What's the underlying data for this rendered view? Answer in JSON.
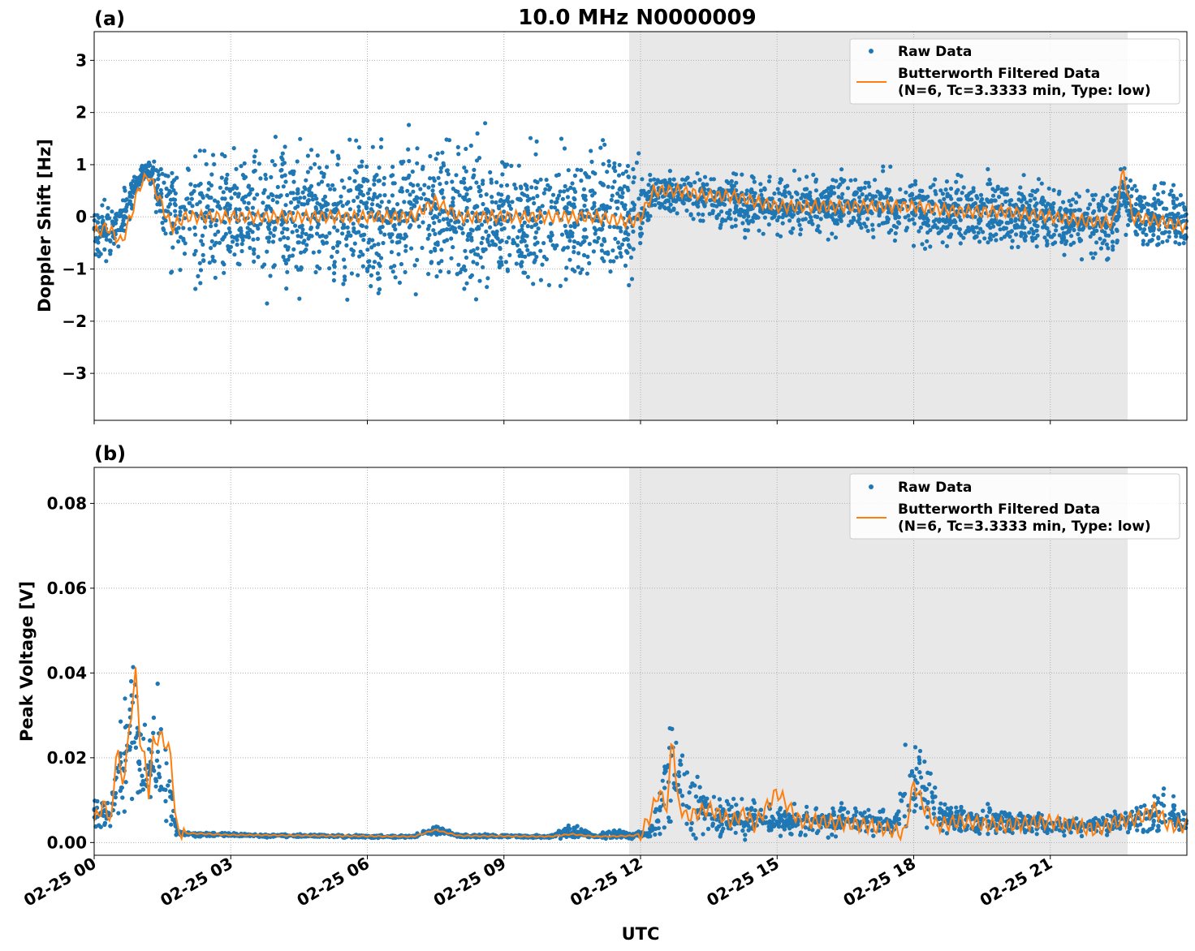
{
  "figure": {
    "title": "10.0 MHz N0000009",
    "xlabel": "UTC",
    "x_tick_labels": [
      "02-25 00",
      "02-25 03",
      "02-25 06",
      "02-25 09",
      "02-25 12",
      "02-25 15",
      "02-25 18",
      "02-25 21"
    ],
    "colors": {
      "raw": "#1f77b4",
      "filtered": "#ff7f0e",
      "night_shade": "#e8e8e8",
      "grid": "#b0b0b0"
    }
  },
  "chart_data": [
    {
      "type": "scatter",
      "panel_label": "(a)",
      "ylabel": "Doppler Shift [Hz]",
      "xlim_hours": [
        0,
        24
      ],
      "ylim": [
        -3.9,
        3.55
      ],
      "y_ticks": [
        -3,
        -2,
        -1,
        0,
        1,
        2,
        3
      ],
      "y_tick_labels": [
        "−3",
        "−2",
        "−1",
        "0",
        "1",
        "2",
        "3"
      ],
      "shaded_span_hours": [
        11.75,
        22.7
      ],
      "grid": true,
      "legend_position": "top-right",
      "series": [
        {
          "name": "Raw Data",
          "type": "scatter",
          "x": [
            0,
            0.5,
            1,
            1.2,
            1.7,
            2,
            3,
            4,
            5,
            6,
            7,
            7.5,
            8,
            9,
            10,
            11,
            11.8,
            12,
            12.3,
            13,
            14,
            15,
            16,
            17,
            18,
            18.2,
            19,
            20,
            21,
            22,
            22.4,
            22.6,
            23,
            24
          ],
          "center": [
            -0.2,
            -0.3,
            0.8,
            0.9,
            0.0,
            0.0,
            0.0,
            0.0,
            0.0,
            0.0,
            0.0,
            0.2,
            0.0,
            0.0,
            0.0,
            0.0,
            0.0,
            0.0,
            0.5,
            0.4,
            0.3,
            0.2,
            0.2,
            0.2,
            0.2,
            0.1,
            0.1,
            0.1,
            0.0,
            -0.1,
            -0.1,
            0.5,
            0.0,
            -0.1
          ],
          "spread": [
            0.5,
            0.5,
            0.2,
            0.2,
            1.0,
            1.2,
            1.2,
            1.2,
            1.2,
            1.2,
            1.2,
            1.2,
            1.2,
            1.2,
            1.2,
            1.2,
            1.1,
            0.8,
            0.3,
            0.4,
            0.5,
            0.5,
            0.5,
            0.5,
            0.6,
            0.6,
            0.6,
            0.6,
            0.6,
            0.6,
            0.7,
            0.6,
            0.6,
            0.6
          ]
        },
        {
          "name": "Butterworth Filtered Data\n(N=6, Tc=3.3333 min, Type: low)",
          "legend_lines": [
            "Butterworth Filtered Data",
            "(N=6, Tc=3.3333 min, Type: low)"
          ],
          "type": "line",
          "x": [
            0,
            0.3,
            0.6,
            0.8,
            1.0,
            1.2,
            1.4,
            1.7,
            2.0,
            3,
            4,
            5,
            6,
            7,
            7.5,
            8,
            9,
            10,
            11,
            11.8,
            12.0,
            12.3,
            12.8,
            13.5,
            14,
            15,
            16,
            17,
            18,
            19,
            20,
            21,
            22,
            22.4,
            22.6,
            22.8,
            23.5,
            24
          ],
          "y": [
            -0.3,
            -0.2,
            -0.5,
            0.0,
            0.6,
            0.8,
            0.4,
            -0.2,
            0.0,
            0.0,
            0.0,
            0.0,
            0.0,
            0.0,
            0.3,
            0.0,
            0.0,
            0.0,
            0.0,
            -0.1,
            0.0,
            0.5,
            0.5,
            0.4,
            0.4,
            0.2,
            0.2,
            0.2,
            0.2,
            0.1,
            0.1,
            0.0,
            -0.1,
            -0.1,
            0.9,
            0.0,
            -0.1,
            -0.2
          ]
        }
      ]
    },
    {
      "type": "scatter",
      "panel_label": "(b)",
      "ylabel": "Peak Voltage [V]",
      "xlim_hours": [
        0,
        24
      ],
      "ylim": [
        -0.003,
        0.0885
      ],
      "y_ticks": [
        0,
        0.02,
        0.04,
        0.06,
        0.08
      ],
      "y_tick_labels": [
        "0.00",
        "0.02",
        "0.04",
        "0.06",
        "0.08"
      ],
      "shaded_span_hours": [
        11.75,
        22.7
      ],
      "grid": true,
      "legend_position": "top-right",
      "series": [
        {
          "name": "Raw Data",
          "type": "scatter",
          "x": [
            0,
            0.3,
            0.5,
            0.7,
            0.9,
            1.0,
            1.2,
            1.4,
            1.6,
            1.8,
            2,
            3,
            4,
            5,
            6,
            7,
            7.5,
            8,
            9,
            10,
            10.5,
            11,
            11.5,
            11.8,
            12.2,
            12.5,
            12.7,
            13,
            13.5,
            14,
            14.5,
            15,
            16,
            17,
            17.5,
            17.9,
            18.2,
            18.5,
            19,
            20,
            21,
            22,
            22.5,
            23,
            23.5,
            24
          ],
          "center": [
            0.008,
            0.007,
            0.012,
            0.02,
            0.03,
            0.02,
            0.018,
            0.02,
            0.015,
            0.003,
            0.002,
            0.0018,
            0.0016,
            0.0016,
            0.0014,
            0.0014,
            0.003,
            0.0016,
            0.0015,
            0.0014,
            0.003,
            0.0014,
            0.002,
            0.0015,
            0.002,
            0.01,
            0.02,
            0.01,
            0.007,
            0.006,
            0.006,
            0.005,
            0.005,
            0.005,
            0.004,
            0.012,
            0.015,
            0.007,
            0.005,
            0.005,
            0.004,
            0.004,
            0.005,
            0.006,
            0.007,
            0.005
          ],
          "spread": [
            0.004,
            0.004,
            0.008,
            0.015,
            0.02,
            0.012,
            0.01,
            0.012,
            0.008,
            0.001,
            0.0005,
            0.0004,
            0.0003,
            0.0003,
            0.0003,
            0.0003,
            0.001,
            0.0003,
            0.0003,
            0.0003,
            0.002,
            0.0003,
            0.0012,
            0.0005,
            0.0008,
            0.008,
            0.015,
            0.008,
            0.005,
            0.004,
            0.004,
            0.003,
            0.003,
            0.003,
            0.002,
            0.01,
            0.012,
            0.004,
            0.003,
            0.003,
            0.002,
            0.002,
            0.003,
            0.004,
            0.005,
            0.003
          ]
        },
        {
          "name": "Butterworth Filtered Data\n(N=6, Tc=3.3333 min, Type: low)",
          "legend_lines": [
            "Butterworth Filtered Data",
            "(N=6, Tc=3.3333 min, Type: low)"
          ],
          "type": "line",
          "x": [
            0,
            0.2,
            0.4,
            0.5,
            0.6,
            0.8,
            0.9,
            1.0,
            1.1,
            1.2,
            1.3,
            1.5,
            1.7,
            1.8,
            2,
            3,
            4,
            5,
            6,
            7,
            7.5,
            8,
            9,
            10,
            10.5,
            11,
            11.5,
            11.8,
            12,
            12.2,
            12.4,
            12.6,
            12.7,
            12.8,
            13,
            13.5,
            14,
            14.3,
            14.5,
            15,
            15.5,
            16,
            17,
            17.5,
            17.8,
            18,
            18.2,
            18.5,
            19,
            20,
            21,
            21.5,
            22,
            22.5,
            23,
            23.3,
            23.6,
            24
          ],
          "y": [
            0.005,
            0.009,
            0.005,
            0.026,
            0.012,
            0.028,
            0.042,
            0.025,
            0.02,
            0.012,
            0.024,
            0.025,
            0.02,
            0.003,
            0.0022,
            0.0018,
            0.0017,
            0.0016,
            0.0015,
            0.0014,
            0.003,
            0.0016,
            0.0015,
            0.0014,
            0.002,
            0.0014,
            0.0015,
            0.0016,
            0.002,
            0.006,
            0.012,
            0.008,
            0.028,
            0.01,
            0.006,
            0.008,
            0.005,
            0.007,
            0.004,
            0.012,
            0.005,
            0.005,
            0.004,
            0.003,
            0.002,
            0.014,
            0.009,
            0.004,
            0.005,
            0.004,
            0.005,
            0.004,
            0.003,
            0.005,
            0.006,
            0.008,
            0.004,
            0.004
          ]
        }
      ]
    }
  ]
}
